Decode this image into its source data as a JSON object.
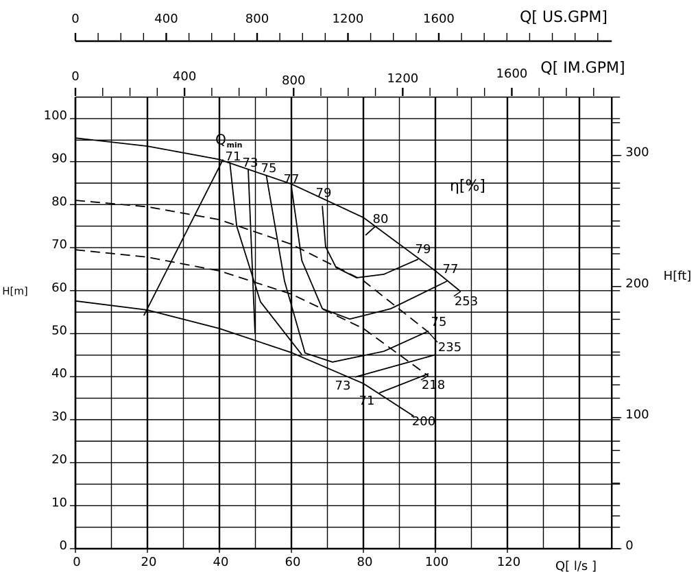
{
  "chart_data": {
    "type": "line",
    "x_label": "Q[ l/s ]",
    "y_label": "H[m]",
    "y2_label": "H[ft]",
    "xlim": [
      0,
      149
    ],
    "xticks": [
      0,
      20,
      40,
      60,
      80,
      100,
      120
    ],
    "x_grid_step": 10,
    "ylim": [
      0,
      105
    ],
    "yticks": [
      0,
      10,
      20,
      30,
      40,
      50,
      60,
      70,
      80,
      90,
      100
    ],
    "y_grid_step": 5,
    "y2lim": [
      0,
      344.5
    ],
    "y2ticks": [
      0,
      100,
      200,
      300
    ],
    "y2_minor_step": 25,
    "grid": true,
    "color": "#000000",
    "top_axes": [
      {
        "label": "Q[ IM.GPM]",
        "lim": [
          0,
          1966.5
        ],
        "ticks": [
          0,
          400,
          800,
          1200,
          1600
        ],
        "minor_step": 100
      },
      {
        "label": "Q[ US.GPM]",
        "lim": [
          0,
          2361.7
        ],
        "ticks": [
          0,
          400,
          800,
          1200,
          1600
        ],
        "minor_step": 100
      }
    ],
    "qmin": {
      "label": "Q",
      "subscript": "min",
      "x": [
        19,
        41
      ],
      "values": [
        54.2,
        90.5
      ]
    },
    "efficiency_label": "η[%]",
    "head_curves": [
      {
        "name": "253",
        "dashed": false,
        "x": [
          0,
          20,
          40,
          60,
          80,
          100,
          107
        ],
        "values": [
          95.5,
          93.6,
          90.5,
          84.8,
          77.0,
          64.6,
          59.8
        ]
      },
      {
        "name": "235",
        "dashed": true,
        "x": [
          0,
          20,
          40,
          60,
          80,
          98
        ],
        "values": [
          81.0,
          79.5,
          76.5,
          70.8,
          62.3,
          50.4
        ]
      },
      {
        "name": "218",
        "dashed": true,
        "x": [
          0,
          20,
          40,
          60,
          80,
          98
        ],
        "values": [
          69.5,
          67.8,
          64.6,
          59.2,
          51.2,
          40.2
        ]
      },
      {
        "name": "200",
        "dashed": false,
        "x": [
          0,
          20,
          40,
          60,
          80,
          94
        ],
        "values": [
          57.6,
          55.5,
          51.2,
          45.6,
          38.4,
          30.8
        ]
      }
    ],
    "efficiency_curves": [
      {
        "name": "71",
        "x": [
          42.9,
          44.8,
          51.4,
          62.9,
          null,
          84.4,
          98.1
        ],
        "values": [
          89.8,
          75.0,
          57.4,
          45.1,
          null,
          36.2,
          40.7
        ]
      },
      {
        "name": "73",
        "x": [
          48.0,
          49.9,
          null,
          77.7,
          100.0
        ],
        "values": [
          88.2,
          49.9,
          null,
          39.9,
          45.1
        ]
      },
      {
        "name": "75",
        "x": [
          53.0,
          58.1,
          63.8,
          71.4,
          85.7,
          98.1
        ],
        "values": [
          86.9,
          62.2,
          45.5,
          43.4,
          45.9,
          50.6
        ]
      },
      {
        "name": "77",
        "x": [
          60.0,
          62.9,
          68.6,
          76.2,
          87.6,
          103.2
        ],
        "values": [
          84.2,
          67.0,
          55.8,
          53.4,
          55.8,
          62.2
        ]
      },
      {
        "name": "79",
        "x": [
          68.6,
          69.5,
          72.4,
          78.1,
          85.7,
          95.2
        ],
        "values": [
          79.7,
          70.2,
          65.4,
          63.0,
          63.8,
          67.3
        ]
      },
      {
        "name": "80",
        "x": [
          80.6,
          83.4
        ],
        "values": [
          72.9,
          75.0
        ]
      }
    ]
  }
}
